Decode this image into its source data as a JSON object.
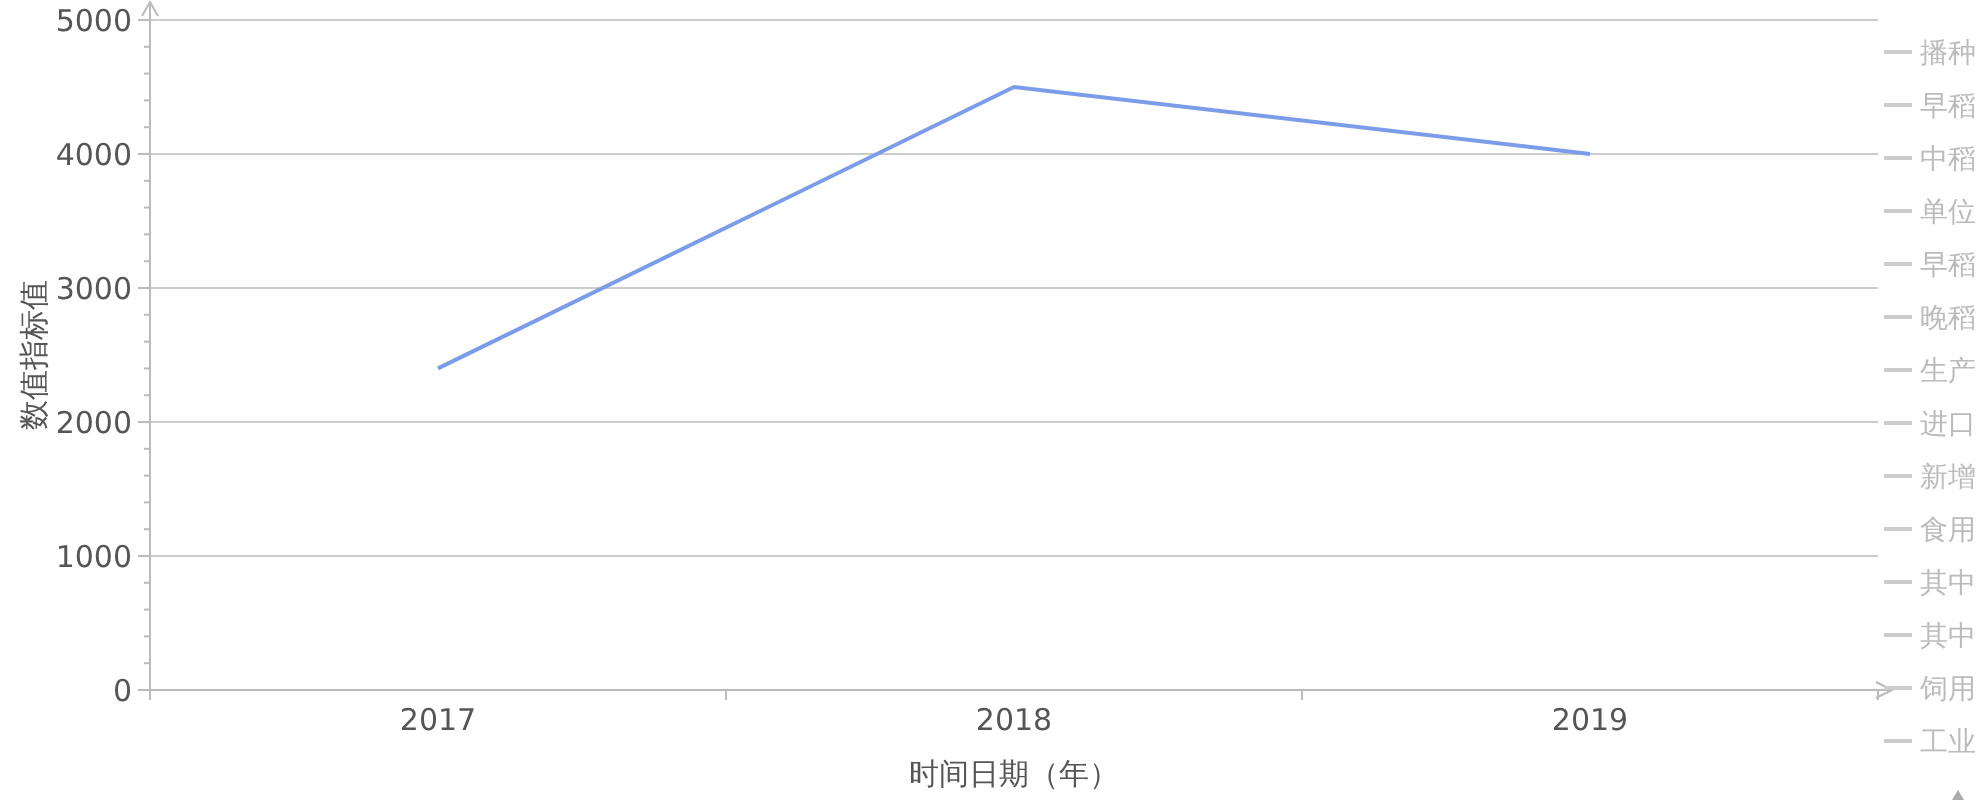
{
  "chart_data": {
    "type": "line",
    "xlabel": "时间日期（年）",
    "ylabel": "数值指标值",
    "categories": [
      "2017",
      "2018",
      "2019"
    ],
    "series": [
      {
        "color": "#7b9ce8",
        "values": [
          2400,
          4500,
          4000
        ]
      },
      {
        "name": "播种",
        "color": "#cccccc",
        "values": [
          null,
          null,
          null
        ]
      },
      {
        "name": "早稻",
        "color": "#cccccc",
        "values": [
          null,
          null,
          null
        ]
      },
      {
        "name": "中稻",
        "color": "#cccccc",
        "values": [
          null,
          null,
          null
        ]
      },
      {
        "name": "单位",
        "color": "#cccccc",
        "values": [
          null,
          null,
          null
        ]
      },
      {
        "name": "早稻",
        "color": "#cccccc",
        "values": [
          null,
          null,
          null
        ]
      },
      {
        "name": "晚稻",
        "color": "#cccccc",
        "values": [
          null,
          null,
          null
        ]
      },
      {
        "name": "生产",
        "color": "#cccccc",
        "values": [
          null,
          null,
          null
        ]
      },
      {
        "name": "进口",
        "color": "#cccccc",
        "values": [
          null,
          null,
          null
        ]
      },
      {
        "name": "新增",
        "color": "#cccccc",
        "values": [
          null,
          null,
          null
        ]
      },
      {
        "name": "食用",
        "color": "#cccccc",
        "values": [
          null,
          null,
          null
        ]
      },
      {
        "name": "其中",
        "color": "#cccccc",
        "values": [
          null,
          null,
          null
        ]
      },
      {
        "name": "其中",
        "color": "#cccccc",
        "values": [
          null,
          null,
          null
        ]
      },
      {
        "name": "饲用",
        "color": "#cccccc",
        "values": [
          null,
          null,
          null
        ]
      },
      {
        "name": "工业",
        "color": "#cccccc",
        "values": [
          null,
          null,
          null
        ]
      }
    ],
    "ylim": [
      0,
      5000
    ],
    "yticks": [
      0,
      1000,
      2000,
      3000,
      4000,
      5000
    ],
    "grid": "y",
    "legend": "right",
    "marker": "none",
    "line_style": "solid"
  }
}
